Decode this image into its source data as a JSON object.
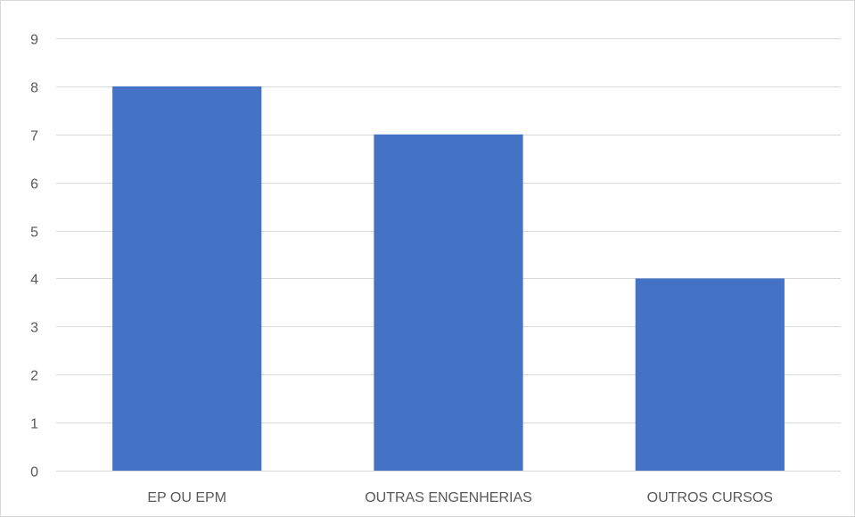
{
  "chart_data": {
    "type": "bar",
    "title": "",
    "xlabel": "",
    "ylabel": "",
    "categories": [
      "EP OU EPM",
      "OUTRAS ENGENHERIAS",
      "OUTROS CURSOS"
    ],
    "values": [
      8,
      7,
      4
    ],
    "ylim": [
      0,
      9
    ],
    "y_ticks": [
      0,
      1,
      2,
      3,
      4,
      5,
      6,
      7,
      8,
      9
    ],
    "grid": true,
    "legend": "none",
    "bar_color": "#4472c4"
  }
}
